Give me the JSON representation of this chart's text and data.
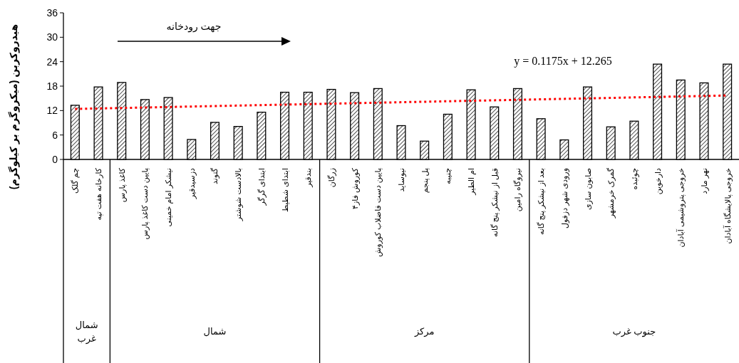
{
  "chart_data": {
    "type": "bar",
    "ylabel": "هیدروکربن (میکروگرم بر کیلوگرم)",
    "categories": [
      "چم گلک",
      "کارخانه هفت تپه",
      "کاغذ پارس",
      "پایین دست کاغذ پارس",
      "نیشکر امام خمینی",
      "دزسیدقیر",
      "گتوند",
      "بالادست شوشتر",
      "ابتدای گرگر",
      "ابتدای شطیط",
      "بندقیر",
      "زرگان",
      "کوروش فاز۴",
      "پایین دست فاضلاب کوروش",
      "نیوساید",
      "پل پنجم",
      "چنیبه",
      "ام الطیر",
      "قبل از نیشکر پنج گانه",
      "نیروگاه رامین",
      "بعد از نیشکر پنج گانه",
      "ورودی شهر دزفول",
      "صابون سازی",
      "گمرک خرمشهر",
      "چوئبده",
      "دارخوین",
      "خروجی پتروشیمی آبادان",
      "نهر مارد",
      "خروجی پالایشگاه آبادان"
    ],
    "series": [
      {
        "color": "#000000",
        "values": [
          13.3,
          17.8,
          18.9,
          14.7,
          15.2,
          4.9,
          9.1,
          8.1,
          11.6,
          16.5,
          16.5,
          17.2,
          16.4,
          17.4,
          8.3,
          4.5,
          11.1,
          17.1,
          12.9,
          17.4,
          10.0,
          4.8,
          17.8,
          8.0,
          9.4,
          23.4,
          19.5,
          18.8,
          23.4
        ]
      },
      {
        "type": "line",
        "color": "#ff0000",
        "line_style": "dotted",
        "x": [
          "چم گلک",
          "خروجی پالایشگاه آبادان"
        ],
        "values": [
          12.4,
          15.7
        ]
      }
    ],
    "ylim": [
      0,
      36
    ],
    "yticks": [
      0,
      6,
      12,
      18,
      24,
      30,
      36
    ],
    "annotations": [
      "جهت رودخانه",
      "y = 0.1175x + 12.265",
      "شمال غرب",
      "شمال",
      "مرکز",
      "جنوب غرب"
    ]
  }
}
